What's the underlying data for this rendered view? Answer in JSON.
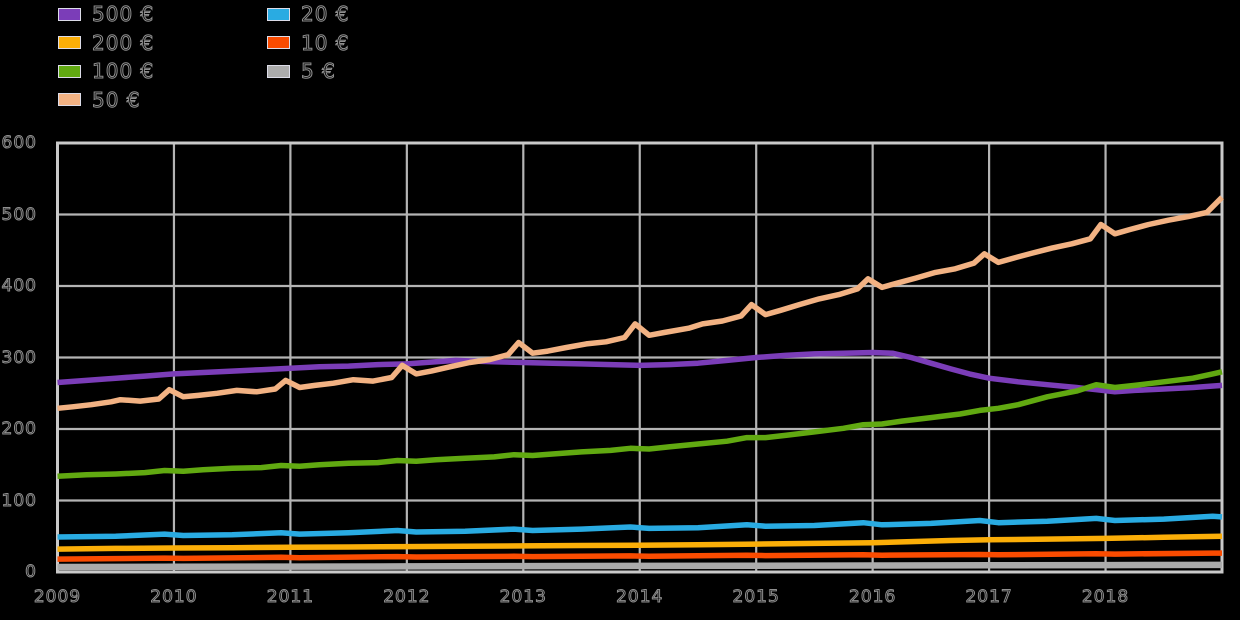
{
  "figure": {
    "background_color": "#000000",
    "text_effect": "black glyphs with gray anti-alias outline",
    "gridline_color": "#b4b4b4",
    "frame_color": "#c9c9c9"
  },
  "legend": {
    "items": [
      {
        "label": "500 €",
        "color": "#7b3db8",
        "column": 0,
        "row": 0
      },
      {
        "label": "200 €",
        "color": "#fbae08",
        "column": 0,
        "row": 1
      },
      {
        "label": "100 €",
        "color": "#61a911",
        "column": 0,
        "row": 2
      },
      {
        "label": "50 €",
        "color": "#f2b283",
        "column": 0,
        "row": 3
      },
      {
        "label": "20 €",
        "color": "#29abe2",
        "column": 1,
        "row": 0
      },
      {
        "label": "10 €",
        "color": "#fa4b00",
        "column": 1,
        "row": 1
      },
      {
        "label": "5 €",
        "color": "#ababab",
        "column": 1,
        "row": 2
      }
    ]
  },
  "chart_data": {
    "type": "line",
    "title": "",
    "xlabel": "",
    "ylabel": "",
    "x_range": [
      2009,
      2019
    ],
    "y_range": [
      0,
      600
    ],
    "grid": true,
    "legend_position": "top-left two-column",
    "x_ticks": {
      "values": [
        2009,
        2010,
        2011,
        2012,
        2013,
        2014,
        2015,
        2016,
        2017,
        2018
      ],
      "labels": [
        "2009",
        "2010",
        "2011",
        "2012",
        "2013",
        "2014",
        "2015",
        "2016",
        "2017",
        "2018"
      ]
    },
    "y_ticks": {
      "values": [
        0,
        100,
        200,
        300,
        400,
        500,
        600
      ],
      "labels": [
        "0",
        "100",
        "200",
        "300",
        "400",
        "500",
        "600"
      ]
    },
    "series": [
      {
        "name": "500 €",
        "color": "#7b3db8",
        "width": 5.5,
        "points": [
          [
            2009.0,
            265
          ],
          [
            2009.25,
            268
          ],
          [
            2009.5,
            271
          ],
          [
            2009.75,
            274
          ],
          [
            2010.0,
            277
          ],
          [
            2010.25,
            279
          ],
          [
            2010.5,
            281
          ],
          [
            2010.75,
            283
          ],
          [
            2011.0,
            285
          ],
          [
            2011.25,
            287
          ],
          [
            2011.5,
            288
          ],
          [
            2011.75,
            290
          ],
          [
            2012.0,
            291
          ],
          [
            2012.25,
            294
          ],
          [
            2012.42,
            296
          ],
          [
            2012.58,
            295
          ],
          [
            2012.75,
            294
          ],
          [
            2013.0,
            293
          ],
          [
            2013.25,
            292
          ],
          [
            2013.5,
            291
          ],
          [
            2013.75,
            290
          ],
          [
            2014.0,
            289
          ],
          [
            2014.25,
            290
          ],
          [
            2014.5,
            292
          ],
          [
            2014.75,
            296
          ],
          [
            2015.0,
            300
          ],
          [
            2015.25,
            303
          ],
          [
            2015.5,
            305
          ],
          [
            2015.75,
            306
          ],
          [
            2016.0,
            307
          ],
          [
            2016.17,
            306
          ],
          [
            2016.33,
            300
          ],
          [
            2016.5,
            292
          ],
          [
            2016.67,
            284
          ],
          [
            2016.83,
            277
          ],
          [
            2017.0,
            271
          ],
          [
            2017.25,
            266
          ],
          [
            2017.5,
            262
          ],
          [
            2017.75,
            258
          ],
          [
            2017.92,
            255
          ],
          [
            2018.08,
            252
          ],
          [
            2018.25,
            254
          ],
          [
            2018.5,
            256
          ],
          [
            2018.75,
            258
          ],
          [
            2019.0,
            261
          ]
        ]
      },
      {
        "name": "200 €",
        "color": "#fbae08",
        "width": 5.5,
        "points": [
          [
            2009.0,
            32
          ],
          [
            2009.5,
            33
          ],
          [
            2010.0,
            33.5
          ],
          [
            2010.5,
            34
          ],
          [
            2011.0,
            34.5
          ],
          [
            2011.5,
            35
          ],
          [
            2012.0,
            35.5
          ],
          [
            2012.5,
            36
          ],
          [
            2013.0,
            36.5
          ],
          [
            2013.5,
            37
          ],
          [
            2014.0,
            37.5
          ],
          [
            2014.5,
            38
          ],
          [
            2015.0,
            39
          ],
          [
            2015.5,
            40
          ],
          [
            2016.0,
            41
          ],
          [
            2016.33,
            42.5
          ],
          [
            2016.67,
            44
          ],
          [
            2017.0,
            45
          ],
          [
            2017.5,
            46
          ],
          [
            2018.0,
            47
          ],
          [
            2018.5,
            48.5
          ],
          [
            2019.0,
            50
          ]
        ]
      },
      {
        "name": "100 €",
        "color": "#61a911",
        "width": 5.5,
        "points": [
          [
            2009.0,
            134
          ],
          [
            2009.25,
            136
          ],
          [
            2009.5,
            137
          ],
          [
            2009.75,
            139
          ],
          [
            2009.92,
            142
          ],
          [
            2010.08,
            141
          ],
          [
            2010.25,
            143
          ],
          [
            2010.5,
            145
          ],
          [
            2010.75,
            146
          ],
          [
            2010.92,
            149
          ],
          [
            2011.08,
            148
          ],
          [
            2011.25,
            150
          ],
          [
            2011.5,
            152
          ],
          [
            2011.75,
            153
          ],
          [
            2011.92,
            156
          ],
          [
            2012.08,
            155
          ],
          [
            2012.25,
            157
          ],
          [
            2012.5,
            159
          ],
          [
            2012.75,
            161
          ],
          [
            2012.92,
            164
          ],
          [
            2013.08,
            163
          ],
          [
            2013.25,
            165
          ],
          [
            2013.5,
            168
          ],
          [
            2013.75,
            170
          ],
          [
            2013.92,
            173
          ],
          [
            2014.08,
            172
          ],
          [
            2014.25,
            175
          ],
          [
            2014.5,
            179
          ],
          [
            2014.75,
            183
          ],
          [
            2014.92,
            188
          ],
          [
            2015.08,
            188
          ],
          [
            2015.25,
            191
          ],
          [
            2015.5,
            196
          ],
          [
            2015.75,
            201
          ],
          [
            2015.92,
            206
          ],
          [
            2016.08,
            207
          ],
          [
            2016.25,
            211
          ],
          [
            2016.5,
            216
          ],
          [
            2016.75,
            221
          ],
          [
            2016.92,
            226
          ],
          [
            2017.08,
            229
          ],
          [
            2017.25,
            234
          ],
          [
            2017.5,
            245
          ],
          [
            2017.75,
            253
          ],
          [
            2017.92,
            262
          ],
          [
            2018.08,
            258
          ],
          [
            2018.25,
            261
          ],
          [
            2018.5,
            266
          ],
          [
            2018.75,
            271
          ],
          [
            2018.92,
            277
          ],
          [
            2019.0,
            280
          ]
        ]
      },
      {
        "name": "50 €",
        "color": "#f2b283",
        "width": 5.5,
        "points": [
          [
            2009.0,
            229
          ],
          [
            2009.13,
            231
          ],
          [
            2009.29,
            234
          ],
          [
            2009.46,
            238
          ],
          [
            2009.54,
            241
          ],
          [
            2009.71,
            239
          ],
          [
            2009.87,
            242
          ],
          [
            2009.96,
            255
          ],
          [
            2010.08,
            245
          ],
          [
            2010.21,
            247
          ],
          [
            2010.37,
            250
          ],
          [
            2010.54,
            254
          ],
          [
            2010.71,
            252
          ],
          [
            2010.87,
            256
          ],
          [
            2010.96,
            268
          ],
          [
            2011.08,
            258
          ],
          [
            2011.21,
            261
          ],
          [
            2011.37,
            264
          ],
          [
            2011.54,
            269
          ],
          [
            2011.71,
            267
          ],
          [
            2011.87,
            272
          ],
          [
            2011.96,
            289
          ],
          [
            2012.08,
            277
          ],
          [
            2012.21,
            281
          ],
          [
            2012.37,
            287
          ],
          [
            2012.54,
            293
          ],
          [
            2012.71,
            297
          ],
          [
            2012.87,
            304
          ],
          [
            2012.96,
            321
          ],
          [
            2013.08,
            306
          ],
          [
            2013.21,
            309
          ],
          [
            2013.37,
            314
          ],
          [
            2013.54,
            319
          ],
          [
            2013.71,
            322
          ],
          [
            2013.87,
            328
          ],
          [
            2013.96,
            347
          ],
          [
            2014.08,
            331
          ],
          [
            2014.21,
            335
          ],
          [
            2014.42,
            341
          ],
          [
            2014.54,
            347
          ],
          [
            2014.71,
            351
          ],
          [
            2014.87,
            358
          ],
          [
            2014.96,
            374
          ],
          [
            2015.08,
            360
          ],
          [
            2015.21,
            366
          ],
          [
            2015.37,
            374
          ],
          [
            2015.54,
            382
          ],
          [
            2015.71,
            388
          ],
          [
            2015.87,
            396
          ],
          [
            2015.96,
            410
          ],
          [
            2016.08,
            398
          ],
          [
            2016.21,
            404
          ],
          [
            2016.37,
            411
          ],
          [
            2016.54,
            419
          ],
          [
            2016.71,
            424
          ],
          [
            2016.87,
            432
          ],
          [
            2016.96,
            445
          ],
          [
            2017.08,
            433
          ],
          [
            2017.21,
            439
          ],
          [
            2017.37,
            446
          ],
          [
            2017.54,
            453
          ],
          [
            2017.71,
            459
          ],
          [
            2017.87,
            466
          ],
          [
            2017.96,
            486
          ],
          [
            2018.08,
            473
          ],
          [
            2018.21,
            479
          ],
          [
            2018.37,
            486
          ],
          [
            2018.54,
            492
          ],
          [
            2018.71,
            497
          ],
          [
            2018.87,
            503
          ],
          [
            2019.0,
            524
          ]
        ]
      },
      {
        "name": "20 €",
        "color": "#29abe2",
        "width": 5.5,
        "points": [
          [
            2009.0,
            49
          ],
          [
            2009.5,
            50
          ],
          [
            2009.92,
            53
          ],
          [
            2010.08,
            51
          ],
          [
            2010.5,
            52
          ],
          [
            2010.92,
            55
          ],
          [
            2011.08,
            53
          ],
          [
            2011.5,
            55
          ],
          [
            2011.92,
            58
          ],
          [
            2012.08,
            56
          ],
          [
            2012.5,
            57
          ],
          [
            2012.92,
            60
          ],
          [
            2013.08,
            58
          ],
          [
            2013.5,
            60
          ],
          [
            2013.92,
            63
          ],
          [
            2014.08,
            61
          ],
          [
            2014.5,
            62
          ],
          [
            2014.92,
            66
          ],
          [
            2015.08,
            64
          ],
          [
            2015.5,
            65
          ],
          [
            2015.92,
            69
          ],
          [
            2016.08,
            66
          ],
          [
            2016.5,
            68
          ],
          [
            2016.92,
            72
          ],
          [
            2017.08,
            69
          ],
          [
            2017.5,
            71
          ],
          [
            2017.92,
            75
          ],
          [
            2018.08,
            72
          ],
          [
            2018.5,
            74
          ],
          [
            2018.92,
            78
          ],
          [
            2019.0,
            77
          ]
        ]
      },
      {
        "name": "10 €",
        "color": "#fa4b00",
        "width": 5.5,
        "points": [
          [
            2009.0,
            18
          ],
          [
            2009.92,
            19.5
          ],
          [
            2010.08,
            19
          ],
          [
            2010.92,
            20.5
          ],
          [
            2011.08,
            20
          ],
          [
            2011.92,
            21.5
          ],
          [
            2012.08,
            21
          ],
          [
            2012.92,
            22
          ],
          [
            2013.08,
            21.5
          ],
          [
            2013.92,
            22.5
          ],
          [
            2014.08,
            22
          ],
          [
            2014.92,
            23.5
          ],
          [
            2015.08,
            23
          ],
          [
            2015.92,
            24
          ],
          [
            2016.08,
            23.5
          ],
          [
            2016.92,
            24.5
          ],
          [
            2017.08,
            24
          ],
          [
            2017.92,
            25.5
          ],
          [
            2018.08,
            25
          ],
          [
            2018.92,
            26.5
          ],
          [
            2019.0,
            26.5
          ]
        ]
      },
      {
        "name": "5 €",
        "color": "#ababab",
        "width": 6.5,
        "points": [
          [
            2009.0,
            7
          ],
          [
            2010.0,
            7.3
          ],
          [
            2011.0,
            7.6
          ],
          [
            2012.0,
            7.9
          ],
          [
            2013.0,
            8.2
          ],
          [
            2014.0,
            8.5
          ],
          [
            2015.0,
            8.8
          ],
          [
            2016.0,
            9.1
          ],
          [
            2017.0,
            9.4
          ],
          [
            2018.0,
            9.7
          ],
          [
            2019.0,
            10
          ]
        ]
      }
    ]
  }
}
